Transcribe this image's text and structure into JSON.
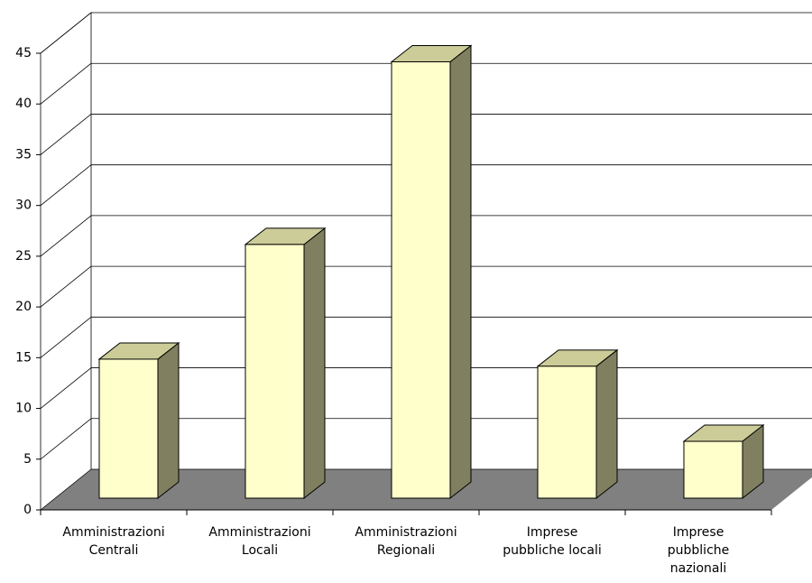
{
  "chart_data": {
    "type": "bar3d",
    "categories": [
      [
        "Amministrazioni",
        "Centrali"
      ],
      [
        "Amministrazioni",
        "Locali"
      ],
      [
        "Amministrazioni",
        "Regionali"
      ],
      [
        "Imprese",
        "pubbliche locali"
      ],
      [
        "Imprese",
        "pubbliche",
        "nazionali"
      ]
    ],
    "values": [
      13.7,
      25,
      43,
      13,
      5.6
    ],
    "color": "#ffffcc",
    "ylim": [
      0,
      45
    ],
    "yticks": [
      0,
      5,
      10,
      15,
      20,
      25,
      30,
      35,
      40,
      45
    ],
    "grid": true
  }
}
